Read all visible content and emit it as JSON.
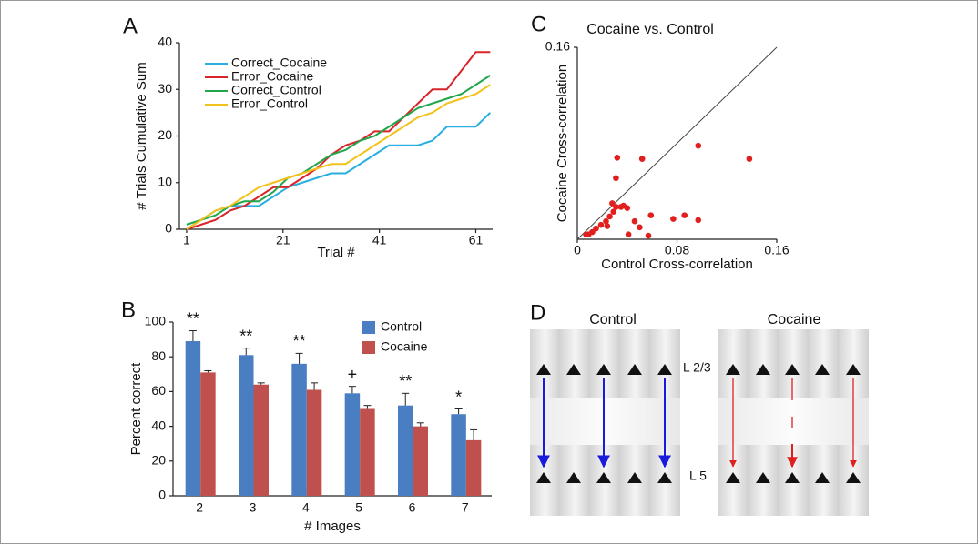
{
  "chart_data": [
    {
      "type": "line",
      "panel": "A",
      "xlabel": "Trial #",
      "ylabel": "# Trials Cumulative Sum",
      "x": [
        1,
        4,
        7,
        10,
        13,
        16,
        19,
        22,
        25,
        28,
        31,
        34,
        37,
        40,
        43,
        46,
        49,
        52,
        55,
        58,
        61,
        64
      ],
      "xlim": [
        -0.5,
        64.5
      ],
      "xticks": [
        1,
        21,
        41,
        61
      ],
      "ylim": [
        0,
        40
      ],
      "yticks": [
        0,
        10,
        20,
        30,
        40
      ],
      "series": [
        {
          "name": "Correct_Cocaine",
          "color": "#29aee0",
          "values": [
            0,
            2,
            4,
            5,
            5,
            5,
            7,
            9,
            10,
            11,
            12,
            12,
            14,
            16,
            18,
            18,
            18,
            19,
            22,
            22,
            22,
            25
          ]
        },
        {
          "name": "Error_Cocaine",
          "color": "#d9252a",
          "values": [
            0,
            1,
            2,
            4,
            5,
            7,
            9,
            9,
            11,
            13,
            16,
            18,
            19,
            21,
            21,
            24,
            27,
            30,
            30,
            34,
            38,
            38
          ]
        },
        {
          "name": "Correct_Control",
          "color": "#22a64a",
          "values": [
            1,
            2,
            3,
            5,
            6,
            6,
            8,
            11,
            12,
            14,
            16,
            17,
            19,
            20,
            22,
            24,
            26,
            27,
            28,
            29,
            31,
            33
          ]
        },
        {
          "name": "Error_Control",
          "color": "#f2c21b",
          "values": [
            0,
            2,
            4,
            5,
            7,
            9,
            10,
            11,
            12,
            13,
            14,
            14,
            16,
            18,
            20,
            22,
            24,
            25,
            27,
            28,
            29,
            31
          ]
        }
      ]
    },
    {
      "type": "bar",
      "panel": "B",
      "xlabel": "# Images",
      "ylabel": "Percent correct",
      "categories": [
        "2",
        "3",
        "4",
        "5",
        "6",
        "7"
      ],
      "ylim": [
        0,
        100
      ],
      "yticks": [
        0,
        20,
        40,
        60,
        80,
        100
      ],
      "annotations": [
        "**",
        "**",
        "**",
        "+",
        "**",
        "*"
      ],
      "series": [
        {
          "name": "Control",
          "color": "#4a7ec2",
          "values": [
            89,
            81,
            76,
            59,
            52,
            47
          ],
          "errors": [
            6,
            4,
            6,
            4,
            7,
            3
          ]
        },
        {
          "name": "Cocaine",
          "color": "#c0504d",
          "values": [
            71,
            64,
            61,
            50,
            40,
            32
          ],
          "errors": [
            1,
            1,
            4,
            2,
            2,
            6
          ]
        }
      ]
    },
    {
      "type": "scatter",
      "panel": "C",
      "title": "Cocaine  vs. Control",
      "xlabel": "Control Cross-correlation",
      "ylabel": "Cocaine Cross-correlation",
      "xlim": [
        0,
        0.16
      ],
      "ylim": [
        0,
        0.16
      ],
      "xticks": [
        0,
        0.08,
        0.16
      ],
      "yticks": [
        0.16
      ],
      "color": "#e0201e",
      "x": [
        0.032,
        0.052,
        0.097,
        0.138,
        0.031,
        0.028,
        0.031,
        0.035,
        0.04,
        0.046,
        0.05,
        0.057,
        0.041,
        0.059,
        0.077,
        0.086,
        0.097,
        0.026,
        0.023,
        0.019,
        0.024,
        0.015,
        0.012,
        0.009,
        0.007,
        0.029,
        0.037
      ],
      "values": [
        0.068,
        0.067,
        0.078,
        0.067,
        0.051,
        0.03,
        0.027,
        0.027,
        0.026,
        0.015,
        0.01,
        0.003,
        0.004,
        0.02,
        0.017,
        0.02,
        0.016,
        0.019,
        0.015,
        0.012,
        0.011,
        0.009,
        0.006,
        0.004,
        0.004,
        0.023,
        0.028
      ]
    }
  ],
  "diagram": {
    "panel": "D",
    "groups": [
      "Control",
      "Cocaine"
    ],
    "layers": [
      "L 2/3",
      "L 5"
    ]
  }
}
